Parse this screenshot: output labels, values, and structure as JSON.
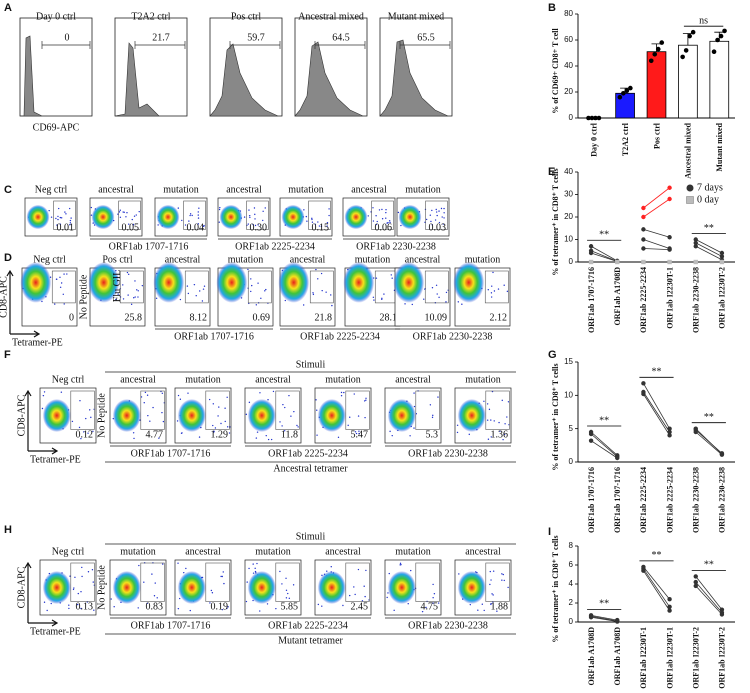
{
  "panel_letters": [
    "A",
    "B",
    "C",
    "D",
    "E",
    "F",
    "G",
    "H",
    "I"
  ],
  "histograms": {
    "x_label": "CD69-APC",
    "plots": [
      {
        "label": "Day 0 ctrl",
        "gate": "0"
      },
      {
        "label": "T2A2 ctrl",
        "gate": "21.7"
      },
      {
        "label": "Pos ctrl",
        "gate": "59.7"
      },
      {
        "label": "Ancestral  mixed",
        "gate": "64.5"
      },
      {
        "label": "Mutant mixed",
        "gate": "65.5"
      }
    ]
  },
  "flow_c": {
    "plots": [
      {
        "label": "Neg ctrl",
        "gate": "0.01"
      },
      {
        "label": "ancestral",
        "gate": "0.05"
      },
      {
        "label": "mutation",
        "gate": "0.04"
      },
      {
        "label": "ancestral",
        "gate": "0.30"
      },
      {
        "label": "mutation",
        "gate": "0.15"
      },
      {
        "label": "ancestral",
        "gate": "0.06"
      },
      {
        "label": "mutation",
        "gate": "0.03"
      }
    ],
    "groups": [
      "ORF1ab 1707-1716",
      "ORF1ab 2225-2234",
      "ORF1ab 2230-2238"
    ]
  },
  "flow_d": {
    "plots": [
      {
        "label": "Neg ctrl",
        "gate": "0"
      },
      {
        "label": "Pos ctrl",
        "gate": "25.8"
      },
      {
        "label": "ancestral",
        "gate": "8.12"
      },
      {
        "label": "mutation",
        "gate": "0.69"
      },
      {
        "label": "ancestral",
        "gate": "21.8"
      },
      {
        "label": "mutation",
        "gate": "28.1"
      },
      {
        "label": "ancestral",
        "gate": "10.09"
      },
      {
        "label": "mutation",
        "gate": "2.12"
      }
    ],
    "groups": [
      "ORF1ab 1707-1716",
      "ORF1ab 2225-2234",
      "ORF1ab 2230-2238"
    ],
    "y_label": "CD8-APC",
    "x_label": "Tetramer-PE",
    "side_labels": [
      "No Peptide",
      "Flu GIL"
    ]
  },
  "flow_f": {
    "stimuli": "Stimuli",
    "plots": [
      {
        "label": "Neg ctrl",
        "gate": "0.12"
      },
      {
        "label": "ancestral",
        "gate": "4.77"
      },
      {
        "label": "mutation",
        "gate": "1.29"
      },
      {
        "label": "ancestral",
        "gate": "11.8"
      },
      {
        "label": "mutation",
        "gate": "5.47"
      },
      {
        "label": "ancestral",
        "gate": "5.3"
      },
      {
        "label": "mutation",
        "gate": "1.36"
      }
    ],
    "groups": [
      "ORF1ab 1707-1716",
      "ORF1ab 2225-2234",
      "ORF1ab 2230-2238"
    ],
    "tetramer": "Ancestral tetramer",
    "y_label": "CD8-APC",
    "x_label": "Tetramer-PE",
    "side_label": "No Peptide"
  },
  "flow_h": {
    "stimuli": "Stimuli",
    "plots": [
      {
        "label": "Neg ctrl",
        "gate": "0.13"
      },
      {
        "label": "mutation",
        "gate": "0.83"
      },
      {
        "label": "ancestral",
        "gate": "0.19"
      },
      {
        "label": "mutation",
        "gate": "5.85"
      },
      {
        "label": "ancestral",
        "gate": "2.45"
      },
      {
        "label": "mutation",
        "gate": "4.75"
      },
      {
        "label": "ancestral",
        "gate": "1.88"
      }
    ],
    "groups": [
      "ORF1ab 1707-1716",
      "ORF1ab 2225-2234",
      "ORF1ab 2230-2238"
    ],
    "tetramer": "Mutant tetramer",
    "y_label": "CD8-APC",
    "x_label": "Tetramer-PE",
    "side_label": "No Peptide"
  },
  "chart_data": [
    {
      "type": "bar",
      "y_label": "% of CD69+ CD8+ T cell",
      "categories": [
        "Day 0 ctrl",
        "T2A2 ctrl",
        "Pos ctrl",
        "Ancestral  mixed",
        "Mutant mixed"
      ],
      "values": [
        0,
        19,
        51,
        56,
        59
      ],
      "errors": [
        0,
        4,
        6,
        9,
        7
      ],
      "colors": [
        "#000000",
        "#1a1aff",
        "#ff1a1a",
        "#ffffff",
        "#ffffff"
      ],
      "points": [
        [
          0,
          0,
          0,
          0
        ],
        [
          16,
          19,
          21,
          23
        ],
        [
          44,
          49,
          53,
          58
        ],
        [
          47,
          52,
          63,
          66
        ],
        [
          51,
          60,
          63,
          67
        ]
      ],
      "annotations": [
        "ns"
      ],
      "ylim": [
        0,
        80
      ],
      "yticks": [
        0,
        20,
        40,
        60,
        80
      ]
    },
    {
      "type": "paired",
      "y_label": "% of tetramer⁺ in CD8⁺ T cells",
      "categories": [
        "ORF1ab 1707-1716",
        "ORF1ab A1708D",
        "ORF1ab 2225-2234",
        "ORF1ab I2230T-1",
        "ORF1ab 2230-2238",
        "ORF1ab I2230T-2"
      ],
      "legend": [
        {
          "name": "7 days",
          "color": "#333333"
        },
        {
          "name": "0 day",
          "color": "#bbbbbb"
        }
      ],
      "pairs": [
        {
          "color": "#333333",
          "values": [
            7,
            0.5,
            null,
            null,
            null,
            null
          ]
        },
        {
          "color": "#333333",
          "values": [
            5,
            0.3,
            null,
            null,
            null,
            null
          ]
        },
        {
          "color": "#333333",
          "values": [
            4,
            0.2,
            null,
            null,
            null,
            null
          ]
        },
        {
          "color": "#ff2222",
          "values": [
            null,
            null,
            24,
            33,
            null,
            null
          ]
        },
        {
          "color": "#ff2222",
          "values": [
            null,
            null,
            20,
            28,
            null,
            null
          ]
        },
        {
          "color": "#333333",
          "values": [
            null,
            null,
            14.5,
            11,
            null,
            null
          ]
        },
        {
          "color": "#333333",
          "values": [
            null,
            null,
            10,
            6,
            null,
            null
          ]
        },
        {
          "color": "#333333",
          "values": [
            null,
            null,
            6,
            5.5,
            null,
            null
          ]
        },
        {
          "color": "#333333",
          "values": [
            null,
            null,
            null,
            null,
            10,
            4
          ]
        },
        {
          "color": "#333333",
          "values": [
            null,
            null,
            null,
            null,
            8.5,
            2.5
          ]
        },
        {
          "color": "#333333",
          "values": [
            null,
            null,
            null,
            null,
            7,
            1
          ]
        }
      ],
      "baseline_values": [
        0,
        0,
        0,
        0,
        0,
        0
      ],
      "annotations": [
        "**",
        "**"
      ],
      "ylim": [
        0,
        40
      ],
      "yticks": [
        0,
        10,
        20,
        30,
        40
      ]
    },
    {
      "type": "paired",
      "y_label": "% of tetramer⁺ in CD8⁺ T cells",
      "categories": [
        "ORF1ab 1707-1716",
        "ORF1ab 1707-1716",
        "ORF1ab 2225-2234",
        "ORF1ab 2225-2234",
        "ORF1ab 2230-2238",
        "ORF1ab 2230-2238"
      ],
      "pairs": [
        {
          "color": "#333333",
          "values": [
            4.5,
            1,
            null,
            null,
            null,
            null
          ]
        },
        {
          "color": "#333333",
          "values": [
            4.2,
            0.8,
            null,
            null,
            null,
            null
          ]
        },
        {
          "color": "#333333",
          "values": [
            3.2,
            0.6,
            null,
            null,
            null,
            null
          ]
        },
        {
          "color": "#333333",
          "values": [
            null,
            null,
            11.8,
            5,
            null,
            null
          ]
        },
        {
          "color": "#333333",
          "values": [
            null,
            null,
            10.5,
            4.5,
            null,
            null
          ]
        },
        {
          "color": "#333333",
          "values": [
            null,
            null,
            10.2,
            4,
            null,
            null
          ]
        },
        {
          "color": "#333333",
          "values": [
            null,
            null,
            null,
            null,
            5,
            1.2
          ]
        },
        {
          "color": "#333333",
          "values": [
            null,
            null,
            null,
            null,
            4.8,
            1.3
          ]
        },
        {
          "color": "#333333",
          "values": [
            null,
            null,
            null,
            null,
            4.5,
            1.1
          ]
        }
      ],
      "annotations": [
        "**",
        "**",
        "**"
      ],
      "ylim": [
        0,
        15
      ],
      "yticks": [
        0,
        5,
        10,
        15
      ]
    },
    {
      "type": "paired",
      "y_label": "% of tetramer⁺ in CD8⁺ T cells",
      "categories": [
        "ORF1ab A1708D",
        "ORF1ab A1708D",
        "ORF1ab I2230T-1",
        "ORF1ab I2230T-1",
        "ORF1ab I2230T-2",
        "ORF1ab I2230T-2"
      ],
      "pairs": [
        {
          "color": "#333333",
          "values": [
            0.7,
            0.2,
            null,
            null,
            null,
            null
          ]
        },
        {
          "color": "#333333",
          "values": [
            0.6,
            0.1,
            null,
            null,
            null,
            null
          ]
        },
        {
          "color": "#333333",
          "values": [
            0.5,
            0.05,
            null,
            null,
            null,
            null
          ]
        },
        {
          "color": "#333333",
          "values": [
            null,
            null,
            5.8,
            2.4,
            null,
            null
          ]
        },
        {
          "color": "#333333",
          "values": [
            null,
            null,
            5.6,
            1.6,
            null,
            null
          ]
        },
        {
          "color": "#333333",
          "values": [
            null,
            null,
            5.4,
            1.2,
            null,
            null
          ]
        },
        {
          "color": "#333333",
          "values": [
            null,
            null,
            null,
            null,
            4.8,
            1.3
          ]
        },
        {
          "color": "#333333",
          "values": [
            null,
            null,
            null,
            null,
            4.2,
            1
          ]
        },
        {
          "color": "#333333",
          "values": [
            null,
            null,
            null,
            null,
            3.8,
            0.8
          ]
        }
      ],
      "annotations": [
        "**",
        "**",
        "**"
      ],
      "ylim": [
        0,
        8
      ],
      "yticks": [
        0,
        2,
        4,
        6,
        8
      ]
    }
  ]
}
